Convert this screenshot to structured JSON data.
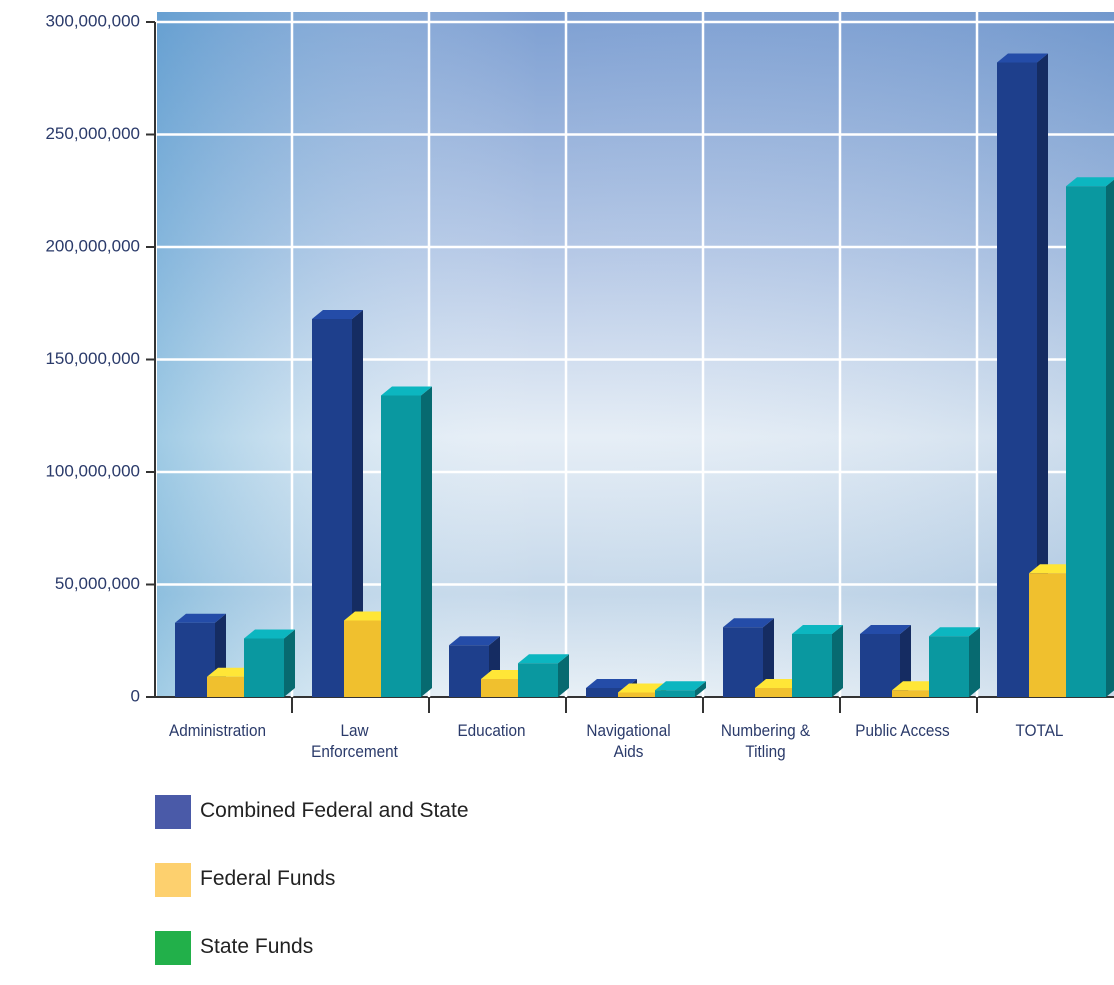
{
  "chart_data": {
    "type": "bar3d",
    "categories": [
      "Administration",
      "Law\nEnforcement",
      "Education",
      "Navigational\nAids",
      "Numbering &\nTitling",
      "Public Access",
      "TOTAL"
    ],
    "series": [
      {
        "name": "Combined Federal and State",
        "color": "#1e3f8c",
        "legend_color": "#4a5aa8",
        "values": [
          33000000,
          168000000,
          23000000,
          4000000,
          31000000,
          28000000,
          282000000
        ]
      },
      {
        "name": "Federal Funds",
        "color": "#f0c02e",
        "legend_color": "#fdd06e",
        "values": [
          9000000,
          34000000,
          8000000,
          2000000,
          4000000,
          3000000,
          55000000
        ]
      },
      {
        "name": "State Funds",
        "color": "#0a98a0",
        "legend_color": "#22b04a",
        "values": [
          26000000,
          134000000,
          15000000,
          3000000,
          28000000,
          27000000,
          227000000
        ]
      }
    ],
    "ylim": [
      0,
      300000000
    ],
    "yticks": [
      0,
      {
        "value": 50000000,
        "label": "50,000,000"
      },
      {
        "value": 100000000,
        "label": "100,000,000"
      },
      {
        "value": 150000000,
        "label": "150,000,000"
      },
      {
        "value": 200000000,
        "label": "200,000,000"
      },
      {
        "value": 250000000,
        "label": "250,000,000"
      },
      {
        "value": 300000000,
        "label": "300,000,000"
      }
    ],
    "grid": true
  }
}
